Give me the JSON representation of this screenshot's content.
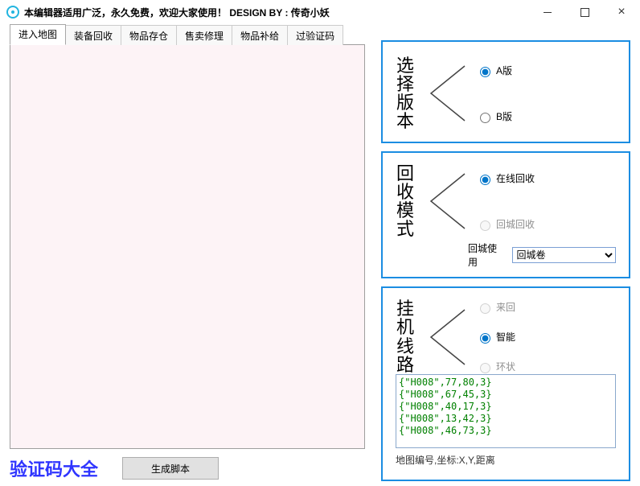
{
  "window": {
    "title": "本编辑器适用广泛，永久免费，欢迎大家使用！ DESIGN BY : 传奇小妖"
  },
  "tabs": {
    "items": [
      "进入地图",
      "装备回收",
      "物品存仓",
      "售卖修理",
      "物品补给",
      "过验证码"
    ],
    "active_index": 0
  },
  "left": {
    "verify_label": "验证码大全",
    "gen_button": "生成脚本"
  },
  "panel_version": {
    "title": "选择版本",
    "options": [
      {
        "label": "A版",
        "checked": true,
        "disabled": false
      },
      {
        "label": "B版",
        "checked": false,
        "disabled": false
      }
    ]
  },
  "panel_recycle": {
    "title": "回收模式",
    "options": [
      {
        "label": "在线回收",
        "checked": true,
        "disabled": false
      },
      {
        "label": "回城回收",
        "checked": false,
        "disabled": true
      }
    ],
    "select_label": "回城使用",
    "select_value": "回城卷"
  },
  "panel_route": {
    "title": "挂机线路",
    "options": [
      {
        "label": "来回",
        "checked": false,
        "disabled": true
      },
      {
        "label": "智能",
        "checked": true,
        "disabled": false
      },
      {
        "label": "环状",
        "checked": false,
        "disabled": true
      }
    ],
    "coords_text": "{\"H008\",77,80,3}\n{\"H008\",67,45,3}\n{\"H008\",40,17,3}\n{\"H008\",13,42,3}\n{\"H008\",46,73,3}",
    "hint": "地图编号,坐标:X,Y,距离"
  },
  "colors": {
    "panel_border": "#1b8de2",
    "editor_bg": "#fdf3f6",
    "coord_text": "#008000",
    "verify_color": "#2f35ff"
  }
}
